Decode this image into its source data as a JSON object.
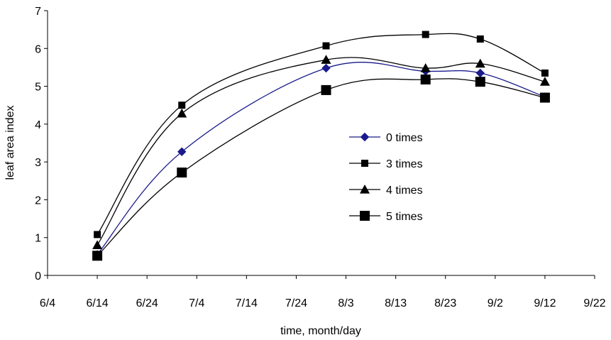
{
  "chart_data": {
    "type": "line",
    "title": "",
    "xlabel": "time, month/day",
    "ylabel": "leaf area index",
    "grid": false,
    "legend_position": "center-right",
    "xlim": [
      "6/4",
      "9/22"
    ],
    "ylim": [
      0,
      7
    ],
    "x_ticks": [
      "6/4",
      "6/14",
      "6/24",
      "7/4",
      "7/14",
      "7/24",
      "8/3",
      "8/13",
      "8/23",
      "9/2",
      "9/12",
      "9/22"
    ],
    "y_ticks": [
      "0",
      "1",
      "2",
      "3",
      "4",
      "5",
      "6",
      "7"
    ],
    "sample_dates": [
      "6/14",
      "7/1",
      "7/30",
      "8/19",
      "8/30",
      "9/12"
    ],
    "series": [
      {
        "name": "0 times",
        "marker": "diamond",
        "color": "#1a1a8c",
        "values": [
          0.55,
          3.27,
          5.48,
          5.4,
          5.35,
          4.72
        ]
      },
      {
        "name": "3 times",
        "marker": "square-small",
        "color": "#000000",
        "values": [
          1.08,
          4.5,
          6.07,
          6.37,
          6.25,
          5.35
        ]
      },
      {
        "name": "4 times",
        "marker": "triangle",
        "color": "#000000",
        "values": [
          0.8,
          4.28,
          5.7,
          5.48,
          5.6,
          5.12
        ]
      },
      {
        "name": "5 times",
        "marker": "square-large",
        "color": "#000000",
        "values": [
          0.52,
          2.72,
          4.9,
          5.18,
          5.12,
          4.7
        ]
      }
    ]
  }
}
